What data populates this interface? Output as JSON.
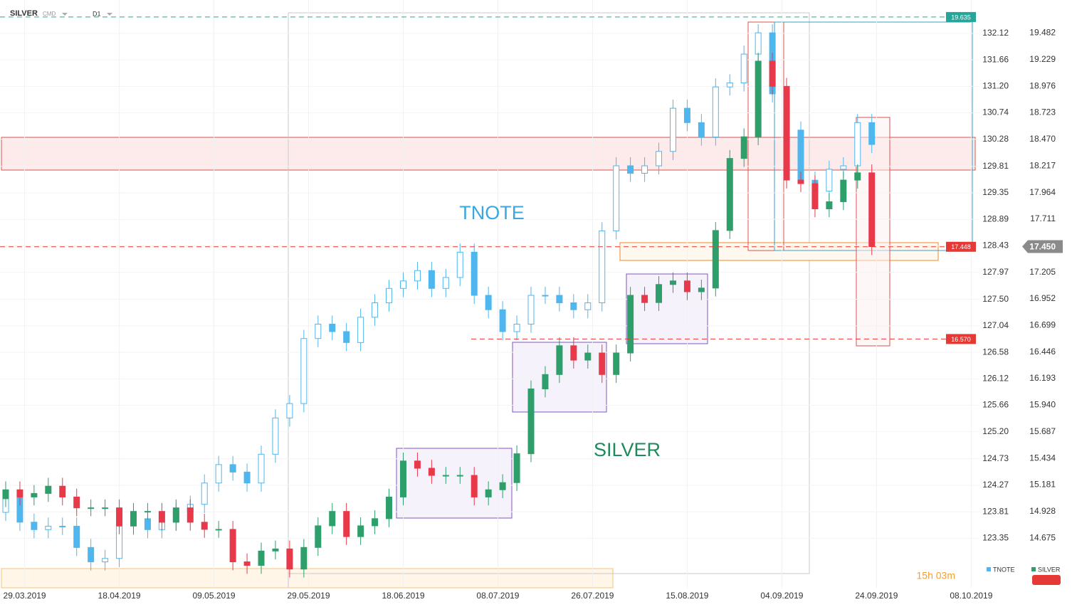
{
  "chart_data": {
    "type": "candlestick",
    "title": "SILVER",
    "instrument_type": "CMD",
    "timeframe": "D1",
    "annotations": [
      {
        "text": "TNOTE",
        "color": "#3aa8e0"
      },
      {
        "text": "SILVER",
        "color": "#1f8a5c"
      }
    ],
    "timer": "15h 03m",
    "grid": true,
    "xlim": [
      -1.2,
      205.6
    ],
    "xticks": [
      {
        "value": 4,
        "label": "29.03.2019"
      },
      {
        "value": 24,
        "label": "18.04.2019"
      },
      {
        "value": 44,
        "label": "09.05.2019"
      },
      {
        "value": 64,
        "label": "29.05.2019"
      },
      {
        "value": 84,
        "label": "18.06.2019"
      },
      {
        "value": 104,
        "label": "08.07.2019"
      },
      {
        "value": 124,
        "label": "26.07.2019"
      },
      {
        "value": 144,
        "label": "15.08.2019"
      },
      {
        "value": 164,
        "label": "04.09.2019"
      },
      {
        "value": 184,
        "label": "24.09.2019"
      },
      {
        "value": 204,
        "label": "08.10.2019"
      }
    ],
    "ylim": [
      122.49,
      132.7
    ],
    "yticks": [
      132.12,
      131.66,
      {
        "value": 131.2,
        "label": "131.20"
      },
      130.74,
      130.28,
      129.81,
      129.35,
      128.89,
      128.43,
      127.97,
      {
        "value": 127.5,
        "label": "127.50"
      },
      127.04,
      126.58,
      126.12,
      125.66,
      {
        "value": 125.2,
        "label": "125.20"
      },
      124.73,
      124.27,
      123.81,
      123.35
    ],
    "y2lim": [
      14.202,
      19.797
    ],
    "y2ticks": [
      19.482,
      19.229,
      18.976,
      18.723,
      {
        "value": 18.47,
        "label": "18.470"
      },
      18.217,
      17.964,
      17.711,
      17.205,
      16.952,
      16.699,
      16.446,
      16.193,
      {
        "value": 15.94,
        "label": "15.940"
      },
      15.687,
      15.434,
      15.181,
      14.928,
      14.675
    ],
    "levels": [
      {
        "value": 19.635,
        "color": "#26a69a"
      },
      {
        "value": 17.448,
        "color": "#e53935"
      },
      {
        "value": {
          "value": 16.57,
          "label": "16.570"
        },
        "color": "#e53935"
      }
    ],
    "last_price": {
      "value": 17.45,
      "label": "17.450"
    },
    "x": [
      0,
      3,
      6,
      9,
      12,
      15,
      18,
      21,
      24,
      27,
      30,
      33,
      36,
      39,
      42,
      45,
      48,
      51,
      54,
      57,
      60,
      63,
      66,
      69,
      72,
      75,
      78,
      81,
      84,
      87,
      90,
      93,
      96,
      99,
      102,
      105,
      108,
      111,
      114,
      117,
      120,
      123,
      126,
      129,
      132,
      135,
      138,
      141,
      144,
      147,
      150,
      153,
      156,
      159,
      162,
      165,
      168,
      171,
      174,
      177,
      180,
      183
    ],
    "series": [
      {
        "name": "TNOTE",
        "color": "#4fb6ee",
        "axis": "y",
        "values": [
          [
            123.8,
            124.21,
            123.65,
            124.06
          ],
          [
            124.06,
            124.21,
            123.48,
            123.63
          ],
          [
            123.63,
            123.78,
            123.35,
            123.5
          ],
          [
            123.5,
            123.71,
            123.35,
            123.56
          ],
          [
            123.56,
            123.71,
            123.41,
            123.56
          ],
          [
            123.56,
            123.71,
            123.04,
            123.19
          ],
          [
            123.19,
            123.34,
            122.79,
            122.94
          ],
          [
            122.94,
            123.15,
            122.79,
            123.0
          ],
          [
            123.0,
            123.71,
            122.85,
            123.56
          ],
          [
            123.56,
            123.84,
            123.41,
            123.69
          ],
          [
            123.69,
            123.84,
            123.35,
            123.5
          ],
          [
            123.5,
            123.78,
            123.35,
            123.63
          ],
          [
            123.63,
            123.96,
            123.48,
            123.81
          ],
          [
            123.81,
            124.09,
            123.66,
            123.94
          ],
          [
            123.94,
            124.46,
            123.79,
            124.31
          ],
          [
            124.31,
            124.78,
            124.16,
            124.63
          ],
          [
            124.63,
            124.78,
            124.35,
            124.5
          ],
          [
            124.5,
            124.65,
            124.16,
            124.31
          ],
          [
            124.31,
            124.96,
            124.16,
            124.81
          ],
          [
            124.81,
            125.59,
            124.66,
            125.44
          ],
          [
            125.44,
            125.84,
            125.29,
            125.69
          ],
          [
            125.69,
            126.97,
            125.54,
            126.82
          ],
          [
            126.82,
            127.22,
            126.67,
            127.07
          ],
          [
            127.07,
            127.22,
            126.79,
            126.94
          ],
          [
            126.94,
            127.09,
            126.6,
            126.75
          ],
          [
            126.75,
            127.34,
            126.6,
            127.19
          ],
          [
            127.19,
            127.59,
            127.04,
            127.44
          ],
          [
            127.44,
            127.84,
            127.29,
            127.69
          ],
          [
            127.69,
            127.97,
            127.54,
            127.82
          ],
          [
            127.82,
            128.15,
            127.67,
            128.0
          ],
          [
            128.0,
            128.15,
            127.54,
            127.69
          ],
          [
            127.69,
            128.03,
            127.54,
            127.88
          ],
          [
            127.88,
            128.47,
            127.73,
            128.32
          ],
          [
            128.32,
            128.47,
            127.42,
            127.57
          ],
          [
            127.57,
            127.72,
            127.17,
            127.32
          ],
          [
            127.32,
            127.47,
            126.79,
            126.94
          ],
          [
            126.94,
            127.22,
            126.79,
            127.07
          ],
          [
            127.07,
            127.72,
            126.92,
            127.57
          ],
          [
            127.57,
            127.72,
            127.42,
            127.57
          ],
          [
            127.57,
            127.72,
            127.29,
            127.44
          ],
          [
            127.44,
            127.59,
            127.17,
            127.32
          ],
          [
            127.32,
            127.59,
            127.17,
            127.44
          ],
          [
            127.44,
            128.84,
            127.29,
            128.69
          ],
          [
            128.69,
            129.97,
            128.54,
            129.82
          ],
          [
            129.82,
            129.97,
            129.54,
            129.69
          ],
          [
            129.69,
            129.97,
            129.54,
            129.82
          ],
          [
            129.82,
            130.22,
            129.67,
            130.07
          ],
          [
            130.07,
            130.97,
            129.92,
            130.82
          ],
          [
            130.82,
            130.97,
            130.42,
            130.57
          ],
          [
            130.57,
            130.72,
            130.17,
            130.32
          ],
          [
            130.32,
            131.34,
            130.17,
            131.19
          ],
          [
            131.19,
            131.41,
            131.04,
            131.26
          ],
          [
            131.26,
            131.91,
            131.11,
            131.76
          ],
          [
            131.76,
            132.28,
            131.61,
            132.13
          ],
          [
            132.13,
            132.28,
            130.92,
            131.07
          ],
          [
            131.07,
            131.22,
            130.29,
            130.44
          ],
          [
            130.44,
            130.59,
            129.42,
            129.57
          ],
          [
            129.57,
            129.72,
            129.23,
            129.38
          ],
          [
            129.38,
            129.91,
            129.23,
            129.76
          ],
          [
            129.76,
            129.97,
            129.61,
            129.82
          ],
          [
            129.82,
            130.72,
            129.67,
            130.57
          ],
          [
            130.57,
            130.72,
            130.04,
            130.19
          ]
        ]
      },
      {
        "name": "SILVER",
        "color": "#2e9e6b",
        "down_color": "#e8394a",
        "axis": "y2",
        "values": [
          [
            15.05,
            15.215,
            14.97,
            15.135
          ],
          [
            15.135,
            15.215,
            14.986,
            15.066
          ],
          [
            15.066,
            15.18,
            14.986,
            15.1
          ],
          [
            15.1,
            15.249,
            15.02,
            15.169
          ],
          [
            15.169,
            15.249,
            14.986,
            15.066
          ],
          [
            15.066,
            15.146,
            14.883,
            14.963
          ],
          [
            14.963,
            15.043,
            14.883,
            14.963
          ],
          [
            14.963,
            15.043,
            14.883,
            14.963
          ],
          [
            14.963,
            15.043,
            14.712,
            14.792
          ],
          [
            14.792,
            15.009,
            14.712,
            14.929
          ],
          [
            14.929,
            15.009,
            14.849,
            14.929
          ],
          [
            14.929,
            15.009,
            14.746,
            14.826
          ],
          [
            14.826,
            15.043,
            14.746,
            14.963
          ],
          [
            14.963,
            15.043,
            14.746,
            14.826
          ],
          [
            14.826,
            14.906,
            14.678,
            14.758
          ],
          [
            14.758,
            14.838,
            14.678,
            14.758
          ],
          [
            14.758,
            14.838,
            14.369,
            14.449
          ],
          [
            14.449,
            14.529,
            14.335,
            14.415
          ],
          [
            14.415,
            14.632,
            14.335,
            14.552
          ],
          [
            14.552,
            14.652,
            14.472,
            14.572
          ],
          [
            14.572,
            14.652,
            14.3,
            14.38
          ],
          [
            14.38,
            14.666,
            14.3,
            14.586
          ],
          [
            14.586,
            14.872,
            14.506,
            14.792
          ],
          [
            14.792,
            15.009,
            14.712,
            14.929
          ],
          [
            14.929,
            15.009,
            14.609,
            14.689
          ],
          [
            14.689,
            14.872,
            14.609,
            14.792
          ],
          [
            14.792,
            14.94,
            14.712,
            14.86
          ],
          [
            14.86,
            15.146,
            14.78,
            15.066
          ],
          [
            15.066,
            15.489,
            14.986,
            15.409
          ],
          [
            15.409,
            15.489,
            15.26,
            15.34
          ],
          [
            15.34,
            15.42,
            15.192,
            15.272
          ],
          [
            15.272,
            15.352,
            15.192,
            15.272
          ],
          [
            15.272,
            15.352,
            15.192,
            15.272
          ],
          [
            15.272,
            15.352,
            14.986,
            15.066
          ],
          [
            15.066,
            15.215,
            14.986,
            15.135
          ],
          [
            15.135,
            15.283,
            15.055,
            15.203
          ],
          [
            15.203,
            15.558,
            15.123,
            15.478
          ],
          [
            15.478,
            16.175,
            15.398,
            16.095
          ],
          [
            16.095,
            16.312,
            16.015,
            16.232
          ],
          [
            16.232,
            16.586,
            16.152,
            16.506
          ],
          [
            16.506,
            16.586,
            16.289,
            16.369
          ],
          [
            16.369,
            16.517,
            16.289,
            16.437
          ],
          [
            16.437,
            16.517,
            16.152,
            16.232
          ],
          [
            16.232,
            16.517,
            16.152,
            16.437
          ],
          [
            16.437,
            17.066,
            16.357,
            16.986
          ],
          [
            16.986,
            17.066,
            16.837,
            16.917
          ],
          [
            16.917,
            17.169,
            16.837,
            17.089
          ],
          [
            17.089,
            17.203,
            17.009,
            17.123
          ],
          [
            17.123,
            17.203,
            16.94,
            17.02
          ],
          [
            17.02,
            17.135,
            16.94,
            17.055
          ],
          [
            17.055,
            17.683,
            16.975,
            17.603
          ],
          [
            17.603,
            18.369,
            17.523,
            18.289
          ],
          [
            18.289,
            18.575,
            18.209,
            18.495
          ],
          [
            18.495,
            19.295,
            18.415,
            19.215
          ],
          [
            19.215,
            19.295,
            18.895,
            18.975
          ],
          [
            18.975,
            19.055,
            18.003,
            18.083
          ],
          [
            18.083,
            18.163,
            17.969,
            18.049
          ],
          [
            18.049,
            18.129,
            17.729,
            17.809
          ],
          [
            17.809,
            17.957,
            17.729,
            17.877
          ],
          [
            17.877,
            18.163,
            17.797,
            18.083
          ],
          [
            18.083,
            18.232,
            18.003,
            18.152
          ],
          [
            18.152,
            18.232,
            17.37,
            17.45
          ]
        ]
      }
    ]
  }
}
